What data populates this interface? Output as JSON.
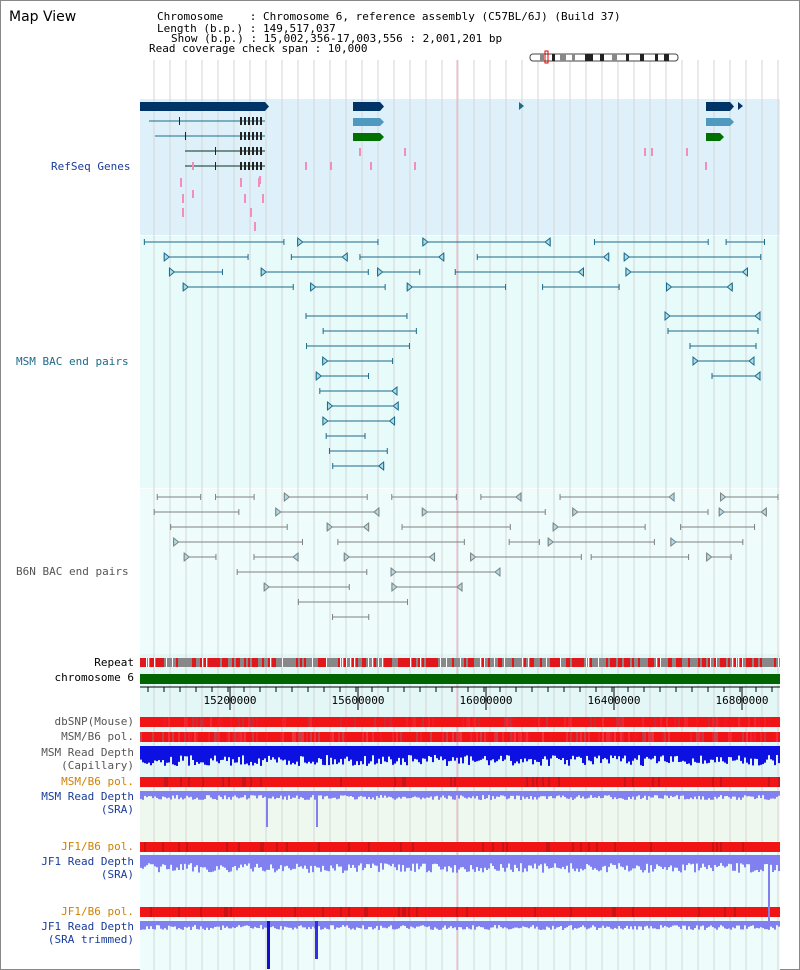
{
  "header": {
    "title": "Map View",
    "info_lines": [
      "Chromosome    : Chromosome 6, reference assembly (C57BL/6J) (Build 37)",
      "Length (b.p.) : 149,517,037",
      "Show (b.p.) : 15,002,356-17,003,556 : 2,001,201 bp",
      "Read coverage check span : 10,000"
    ]
  },
  "tracks": {
    "refseq": "RefSeq Genes",
    "msm_bac": "MSM BAC end pairs",
    "b6n_bac": "B6N BAC end pairs",
    "repeat": "Repeat",
    "chromosome": "chromosome 6",
    "dbsnp": "dbSNP(Mouse)",
    "msm_b6_pol_1": "MSM/B6 pol.",
    "msm_read_depth_cap_1": "MSM Read Depth",
    "msm_read_depth_cap_2": "(Capillary)",
    "msm_b6_pol_2": "MSM/B6 pol.",
    "msm_read_depth_sra_1": "MSM Read Depth",
    "msm_read_depth_sra_2": "(SRA)",
    "jf1_b6_pol_1": "JF1/B6 pol.",
    "jf1_read_depth_sra_1": "JF1 Read Depth",
    "jf1_read_depth_sra_2": "(SRA)",
    "jf1_b6_pol_2": "JF1/B6 pol.",
    "jf1_read_depth_trim_1": "JF1 Read Depth",
    "jf1_read_depth_trim_2": "(SRA trimmed)"
  },
  "axis": {
    "ticks": [
      "15200000",
      "15600000",
      "16000000",
      "16400000",
      "16800000"
    ]
  },
  "colors": {
    "refseq_bg": "#def1fb",
    "bac_bg": "#e8fbfb",
    "msm_pair": "#1d6a8a",
    "b6n_pair": "#808080",
    "gene_dark": "#003366",
    "gene_light": "#4f98bf",
    "gene_green": "#007000",
    "pink": "#f090b8",
    "chrom_green": "#006400",
    "blue_label": "#1a3c9a",
    "orange_label": "#d08000",
    "depth_dark": "#0c10e0",
    "depth_light": "#8080f0"
  }
}
